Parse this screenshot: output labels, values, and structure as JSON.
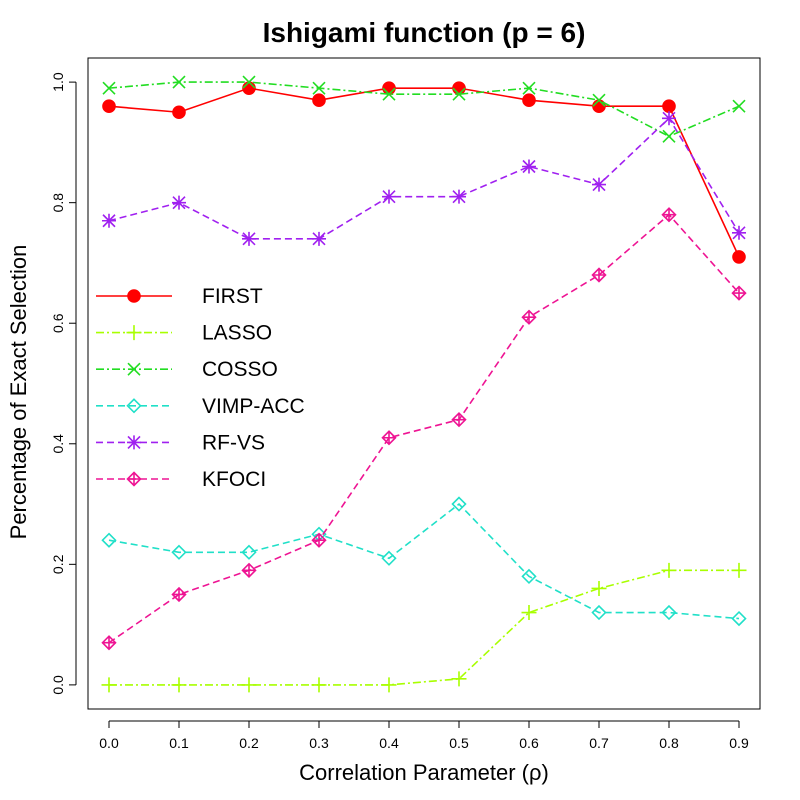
{
  "chart_data": {
    "type": "line",
    "title": "Ishigami function (p = 6)",
    "xlabel": "Correlation Parameter (ρ)",
    "ylabel": "Percentage of Exact Selection",
    "x": [
      0.0,
      0.1,
      0.2,
      0.3,
      0.4,
      0.5,
      0.6,
      0.7,
      0.8,
      0.9
    ],
    "x_tick_labels": [
      "0.0",
      "0.1",
      "0.2",
      "0.3",
      "0.4",
      "0.5",
      "0.6",
      "0.7",
      "0.8",
      "0.9"
    ],
    "y_ticks": [
      0.0,
      0.2,
      0.4,
      0.6,
      0.8,
      1.0
    ],
    "y_tick_labels": [
      "0.0",
      "0.2",
      "0.4",
      "0.6",
      "0.8",
      "1.0"
    ],
    "xlim": [
      -0.03,
      0.93
    ],
    "ylim": [
      -0.04,
      1.04
    ],
    "grid": false,
    "legend_position": "middle-left",
    "series": [
      {
        "name": "FIRST",
        "color": "#ff0000",
        "marker": "filled-circle",
        "dash": "solid",
        "values": [
          0.96,
          0.95,
          0.99,
          0.97,
          0.99,
          0.99,
          0.97,
          0.96,
          0.96,
          0.71
        ]
      },
      {
        "name": "LASSO",
        "color": "#a8ff00",
        "marker": "plus",
        "dash": "dashdot",
        "values": [
          0.0,
          0.0,
          0.0,
          0.0,
          0.0,
          0.01,
          0.12,
          0.16,
          0.19,
          0.19
        ]
      },
      {
        "name": "COSSO",
        "color": "#22dd22",
        "marker": "cross",
        "dash": "dashdot",
        "values": [
          0.99,
          1.0,
          1.0,
          0.99,
          0.98,
          0.98,
          0.99,
          0.97,
          0.91,
          0.96
        ]
      },
      {
        "name": "VIMP-ACC",
        "color": "#20e0c8",
        "marker": "diamond",
        "dash": "dashed",
        "values": [
          0.24,
          0.22,
          0.22,
          0.25,
          0.21,
          0.3,
          0.18,
          0.12,
          0.12,
          0.11
        ]
      },
      {
        "name": "RF-VS",
        "color": "#a020f0",
        "marker": "asterisk",
        "dash": "dashed",
        "values": [
          0.77,
          0.8,
          0.74,
          0.74,
          0.81,
          0.81,
          0.86,
          0.83,
          0.94,
          0.75
        ]
      },
      {
        "name": "KFOCI",
        "color": "#ee1493",
        "marker": "diamond-plus",
        "dash": "dashed",
        "values": [
          0.07,
          0.15,
          0.19,
          0.24,
          0.41,
          0.44,
          0.61,
          0.68,
          0.78,
          0.65
        ]
      }
    ]
  }
}
